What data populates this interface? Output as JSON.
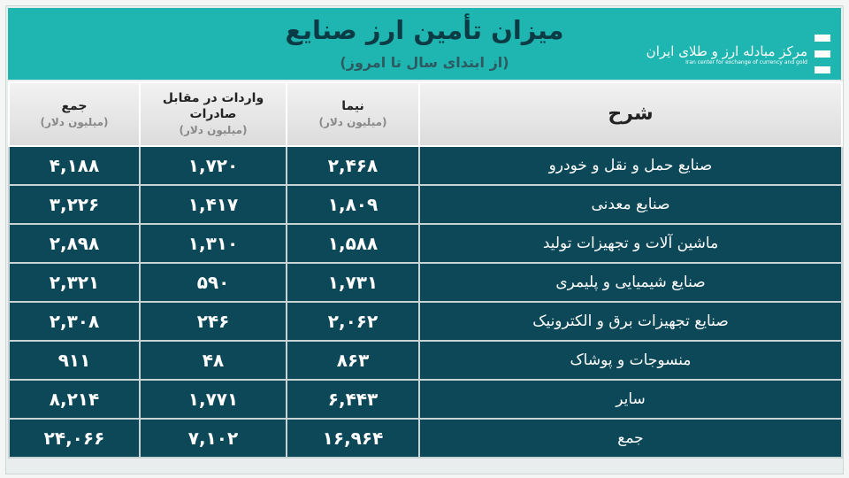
{
  "header": {
    "title": "میزان تأمین ارز صنایع",
    "subtitle": "(از ابتدای سال تا امروز)",
    "logo": {
      "fa": "مرکز مبادله ارز و طلای ایران",
      "en": "Iran center for exchange of currency and gold"
    }
  },
  "colors": {
    "banner": "#1fb5b1",
    "row": "#0d4858",
    "header_row": "#e4e4e4"
  },
  "table": {
    "columns": [
      {
        "label": "شرح",
        "unit": ""
      },
      {
        "label": "نیما",
        "unit": "(میلیون دلار)"
      },
      {
        "label": "واردات در مقابل صادرات",
        "unit": "(میلیون دلار)"
      },
      {
        "label": "جمع",
        "unit": "(میلیون دلار)"
      }
    ],
    "rows": [
      {
        "desc": "صنایع حمل و نقل و خودرو",
        "nima": "۲,۴۶۸",
        "import": "۱,۷۲۰",
        "total": "۴,۱۸۸"
      },
      {
        "desc": "صنایع معدنی",
        "nima": "۱,۸۰۹",
        "import": "۱,۴۱۷",
        "total": "۳,۲۲۶"
      },
      {
        "desc": "ماشین آلات و تجهیزات تولید",
        "nima": "۱,۵۸۸",
        "import": "۱,۳۱۰",
        "total": "۲,۸۹۸"
      },
      {
        "desc": "صنایع شیمیایی و پلیمری",
        "nima": "۱,۷۳۱",
        "import": "۵۹۰",
        "total": "۲,۳۲۱"
      },
      {
        "desc": "صنایع تجهیزات برق و الکترونیک",
        "nima": "۲,۰۶۲",
        "import": "۲۴۶",
        "total": "۲,۳۰۸"
      },
      {
        "desc": "منسوجات و پوشاک",
        "nima": "۸۶۳",
        "import": "۴۸",
        "total": "۹۱۱"
      },
      {
        "desc": "سایر",
        "nima": "۶,۴۴۳",
        "import": "۱,۷۷۱",
        "total": "۸,۲۱۴"
      },
      {
        "desc": "جمع",
        "nima": "۱۶,۹۶۴",
        "import": "۷,۱۰۲",
        "total": "۲۴,۰۶۶"
      }
    ]
  }
}
